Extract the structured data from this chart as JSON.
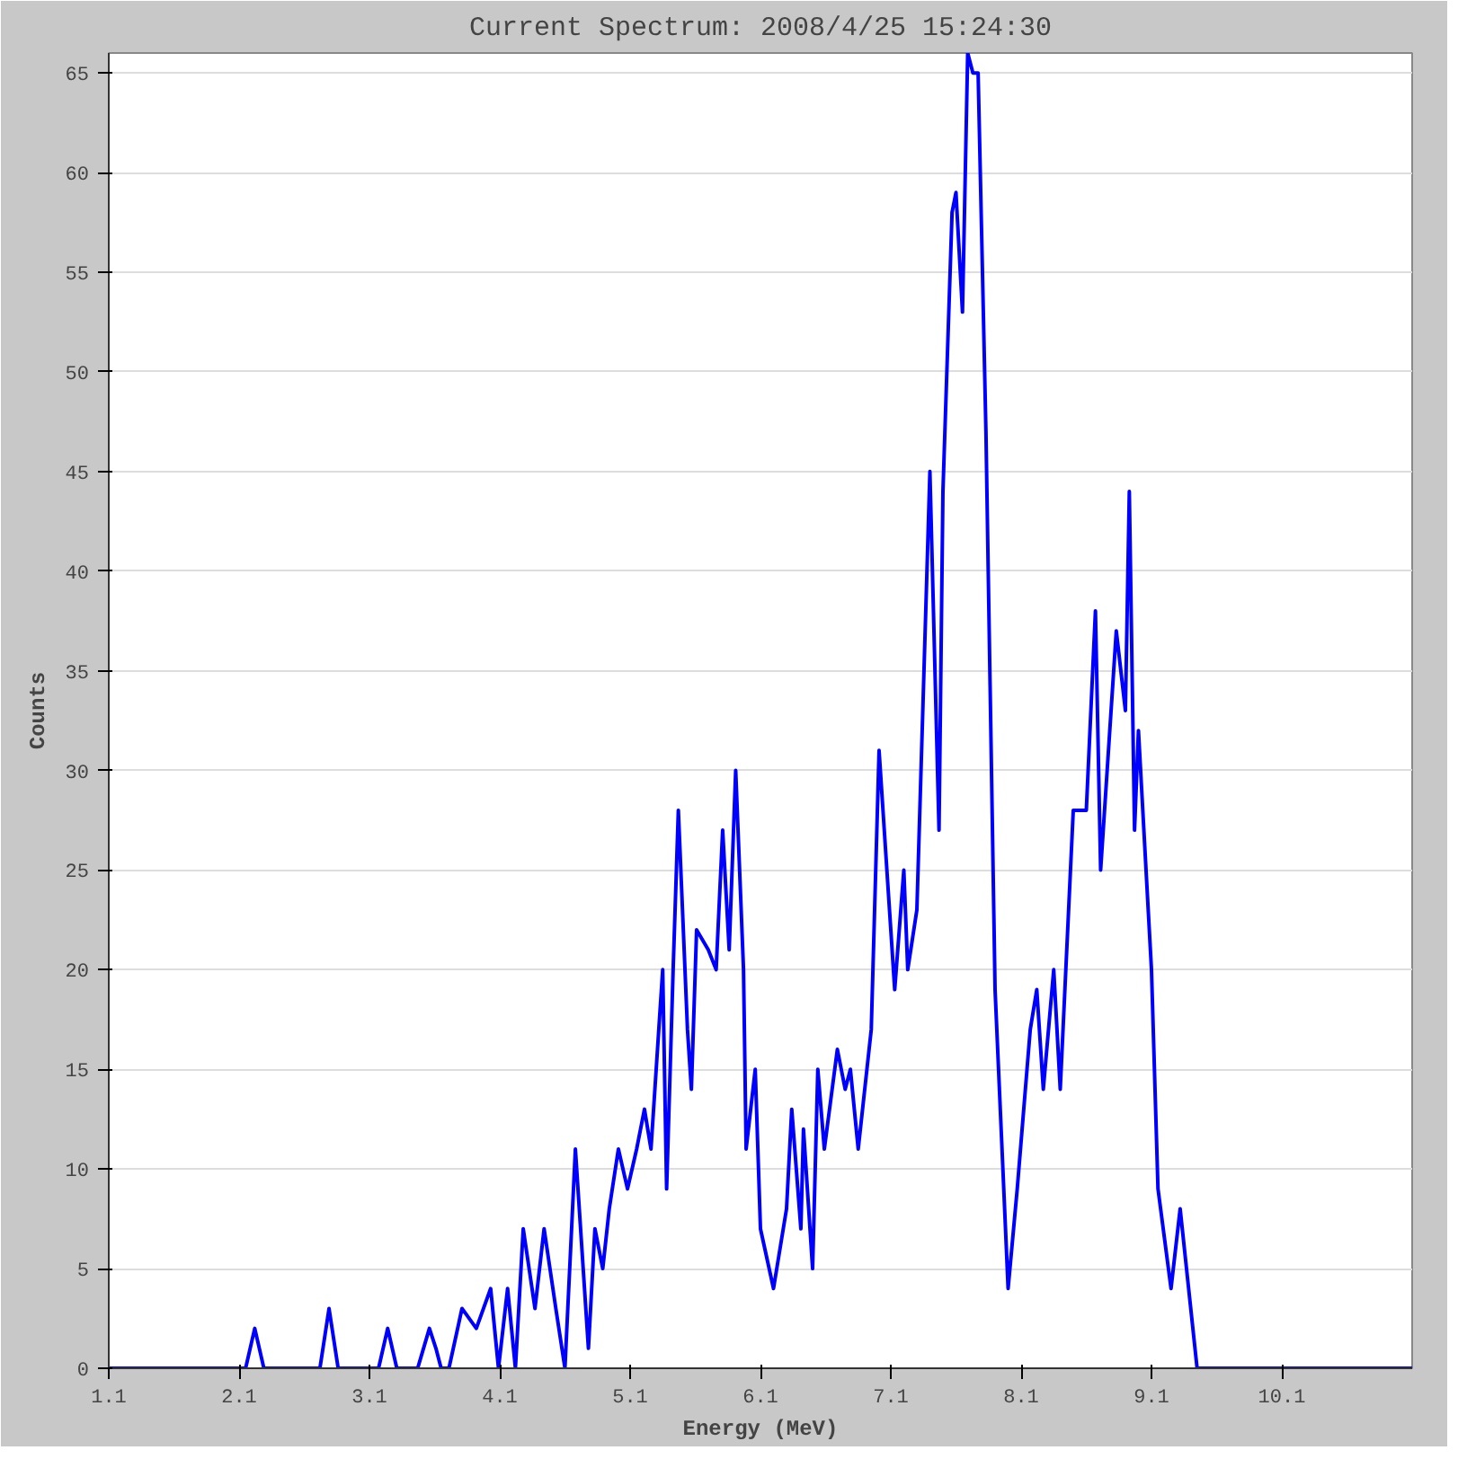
{
  "chart_data": {
    "type": "line",
    "title": "Current Spectrum: 2008/4/25 15:24:30",
    "xlabel": "Energy (MeV)",
    "ylabel": "Counts",
    "xlim": [
      1.1,
      11.1
    ],
    "xticks": [
      1.1,
      2.1,
      3.1,
      4.1,
      5.1,
      6.1,
      7.1,
      8.1,
      9.1,
      10.1
    ],
    "ylim": [
      0,
      66
    ],
    "yticks": [
      0,
      5,
      10,
      15,
      20,
      25,
      30,
      35,
      40,
      45,
      50,
      55,
      60,
      65
    ],
    "grid": "y",
    "marker": "none",
    "line_style": "solid",
    "series": [
      {
        "color": "#0000ff",
        "x": [
          1.1,
          2.15,
          2.22,
          2.29,
          2.72,
          2.79,
          2.86,
          3.17,
          3.24,
          3.31,
          3.47,
          3.56,
          3.61,
          3.65,
          3.71,
          3.81,
          3.92,
          4.03,
          4.09,
          4.16,
          4.22,
          4.28,
          4.37,
          4.44,
          4.53,
          4.6,
          4.68,
          4.74,
          4.78,
          4.83,
          4.89,
          4.94,
          5.01,
          5.08,
          5.15,
          5.21,
          5.26,
          5.32,
          5.35,
          5.38,
          5.43,
          5.47,
          5.54,
          5.57,
          5.61,
          5.7,
          5.76,
          5.81,
          5.86,
          5.91,
          5.97,
          5.99,
          6.06,
          6.1,
          6.2,
          6.3,
          6.34,
          6.41,
          6.43,
          6.5,
          6.54,
          6.59,
          6.69,
          6.75,
          6.79,
          6.85,
          6.95,
          7.01,
          7.13,
          7.2,
          7.23,
          7.3,
          7.4,
          7.47,
          7.5,
          7.57,
          7.6,
          7.65,
          7.69,
          7.73,
          7.77,
          7.83,
          7.9,
          8.0,
          8.07,
          8.17,
          8.22,
          8.27,
          8.35,
          8.4,
          8.5,
          8.6,
          8.67,
          8.71,
          8.83,
          8.9,
          8.93,
          8.97,
          9.0,
          9.1,
          9.15,
          9.25,
          9.32,
          9.45,
          11.1
        ],
        "values": [
          0,
          0,
          2,
          0,
          0,
          3,
          0,
          0,
          2,
          0,
          0,
          2,
          1,
          0,
          0,
          3,
          2,
          4,
          0,
          4,
          0,
          7,
          3,
          7,
          3,
          0,
          11,
          5,
          1,
          7,
          5,
          8,
          11,
          9,
          11,
          13,
          11,
          17,
          20,
          9,
          20,
          28,
          17,
          14,
          22,
          21,
          20,
          27,
          21,
          30,
          20,
          11,
          15,
          7,
          4,
          8,
          13,
          7,
          12,
          5,
          15,
          11,
          16,
          14,
          15,
          11,
          17,
          31,
          19,
          25,
          20,
          23,
          45,
          27,
          44,
          58,
          59,
          53,
          66,
          65,
          65,
          47,
          19,
          4,
          9,
          17,
          19,
          14,
          20,
          14,
          28,
          28,
          38,
          25,
          37,
          33,
          44,
          27,
          32,
          20,
          9,
          4,
          8,
          0,
          0
        ]
      }
    ]
  }
}
